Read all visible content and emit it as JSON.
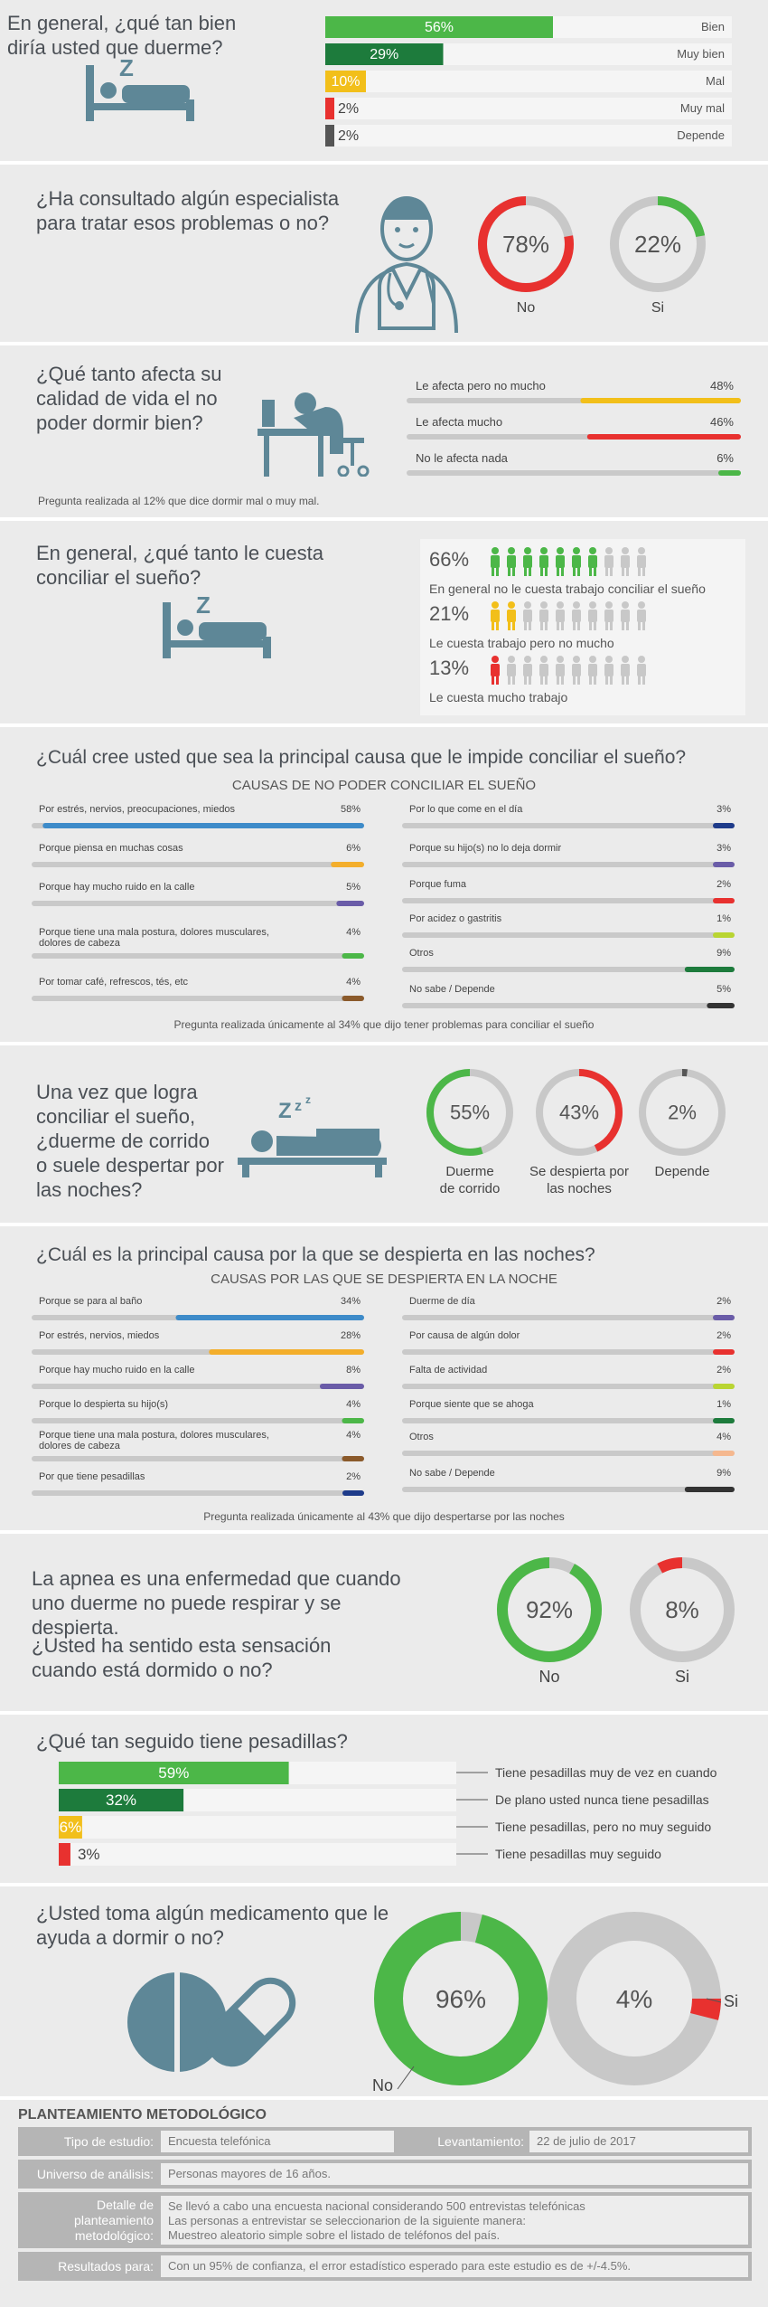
{
  "colors": {
    "green": "#4cb748",
    "dark_green": "#1d7b3c",
    "yellow": "#f2bf1a",
    "red": "#e8312f",
    "dark_gray": "#555555",
    "blue": "#3d8bc9",
    "orange": "#f3ae2b",
    "purple": "#6a5ca8",
    "brown": "#8b5a2b",
    "navy": "#1e3b8a",
    "light_green": "#b9d532",
    "bg": "#ebebeb",
    "icon": "#5e8797"
  },
  "s1": {
    "title": "En general, ¿qué tan bien diría usted que duerme?"
  },
  "s2": {
    "title": "¿Ha consultado algún especialista para tratar esos problemas o no?"
  },
  "s3": {
    "title": "¿Qué tanto afecta su calidad de vida el no poder dormir bien?",
    "note": "Pregunta realizada al 12% que dice dormir mal o muy mal."
  },
  "s4": {
    "title": "En general, ¿qué tanto le cuesta conciliar el sueño?"
  },
  "s5": {
    "title": "¿Cuál cree usted que sea la principal causa que le impide conciliar el sueño?",
    "subtitle": "CAUSAS DE NO PODER CONCILIAR EL SUEÑO",
    "note": "Pregunta realizada únicamente al 34% que dijo tener problemas para conciliar el sueño"
  },
  "s6": {
    "title": "Una vez que logra conciliar el sueño, ¿duerme de corrido o suele despertar por las noches?"
  },
  "s7": {
    "title": "¿Cuál es la principal causa por la que se despierta en las noches?",
    "subtitle": "CAUSAS POR LAS QUE SE DESPIERTA EN LA NOCHE",
    "note": "Pregunta realizada únicamente al 43% que dijo despertarse por las noches"
  },
  "s8": {
    "title1": "La apnea es una enfermedad que cuando uno duerme no puede respirar y se despierta.",
    "title2": "¿Usted ha sentido esta sensación cuando está dormido o no?"
  },
  "s9": {
    "title": "¿Qué tan seguido tiene pesadillas?"
  },
  "s10": {
    "title": "¿Usted toma algún medicamento que le ayuda a dormir o no?"
  },
  "meth": {
    "title": "PLANTEAMIENTO METODOLÓGICO",
    "tipo_label": "Tipo de estudio:",
    "tipo_value": "Encuesta telefónica",
    "lev_label": "Levantamiento:",
    "lev_value": "22 de julio de 2017",
    "univ_label": "Universo de análisis:",
    "univ_value": "Personas mayores de 16 años.",
    "detalle_label": "Detalle de planteamiento metodológico:",
    "detalle_value1": "Se llevó a cabo una encuesta nacional considerando 500 entrevistas telefónicas",
    "detalle_value2": "Las personas a entrevistar se seleccionarion de la siguiente manera:",
    "detalle_value3": "Muestreo aleatorio simple sobre el listado de teléfonos del país.",
    "res_label": "Resultados para:",
    "res_value": "Con un 95% de confianza, el error estadístico esperado para este estudio es de +/-4.5%."
  },
  "chart_data": [
    {
      "type": "bar",
      "id": "duerme",
      "categories": [
        "Bien",
        "Muy bien",
        "Mal",
        "Muy mal",
        "Depende"
      ],
      "values": [
        56,
        29,
        10,
        2,
        2
      ],
      "labels": [
        "56%",
        "29%",
        "10%",
        "2%",
        "2%"
      ],
      "colors": [
        "#4cb748",
        "#1d7b3c",
        "#f2bf1a",
        "#e8312f",
        "#555555"
      ],
      "ylim": [
        0,
        100
      ]
    },
    {
      "type": "pie",
      "id": "especialista",
      "categories": [
        "No",
        "Si"
      ],
      "values": [
        78,
        22
      ],
      "labels": [
        "78%",
        "22%"
      ],
      "colors": [
        "#e8312f",
        "#4cb748"
      ]
    },
    {
      "type": "bar",
      "id": "afecta",
      "categories": [
        "Le afecta pero no mucho",
        "Le afecta mucho",
        "No le afecta nada"
      ],
      "values": [
        48,
        46,
        6
      ],
      "labels": [
        "48%",
        "46%",
        "6%"
      ],
      "colors": [
        "#f2bf1a",
        "#e8312f",
        "#4cb748"
      ]
    },
    {
      "type": "bar",
      "id": "conciliar",
      "categories": [
        "En general no le cuesta trabajo conciliar el sueño",
        "Le cuesta trabajo pero no mucho",
        "Le cuesta mucho trabajo"
      ],
      "values": [
        66,
        21,
        13
      ],
      "labels": [
        "66%",
        "21%",
        "13%"
      ],
      "colors": [
        "#4cb748",
        "#f2bf1a",
        "#e8312f"
      ]
    },
    {
      "type": "bar",
      "id": "causas_conciliar_izq",
      "categories": [
        "Por estrés, nervios, preocupaciones, miedos",
        "Porque piensa en muchas cosas",
        "Porque hay mucho ruido en la calle",
        "Porque tiene una mala postura, dolores musculares, dolores de cabeza",
        "Por tomar café, refrescos, tés, etc"
      ],
      "values": [
        58,
        6,
        5,
        4,
        4
      ],
      "labels": [
        "58%",
        "6%",
        "5%",
        "4%",
        "4%"
      ],
      "colors": [
        "#3d8bc9",
        "#f3ae2b",
        "#6a5ca8",
        "#4cb748",
        "#8b5a2b"
      ]
    },
    {
      "type": "bar",
      "id": "causas_conciliar_der",
      "categories": [
        "Por lo que come en el día",
        "Porque su hijo(s) no lo deja dormir",
        "Porque fuma",
        "Por acidez o gastritis",
        "Otros",
        "No sabe / Depende"
      ],
      "values": [
        3,
        3,
        2,
        1,
        9,
        5
      ],
      "labels": [
        "3%",
        "3%",
        "2%",
        "1%",
        "9%",
        "5%"
      ],
      "colors": [
        "#1e3b8a",
        "#6a5ca8",
        "#e8312f",
        "#b9d532",
        "#1d7b3c",
        "#333333"
      ]
    },
    {
      "type": "pie",
      "id": "corrido",
      "categories": [
        "Duerme de corrido",
        "Se despierta por las noches",
        "Depende"
      ],
      "values": [
        55,
        43,
        2
      ],
      "labels": [
        "55%",
        "43%",
        "2%"
      ],
      "colors": [
        "#4cb748",
        "#e8312f",
        "#555555"
      ]
    },
    {
      "type": "bar",
      "id": "causas_despierta_izq",
      "categories": [
        "Porque se para al baño",
        "Por estrés, nervios, miedos",
        "Porque hay mucho ruido en la calle",
        "Porque lo despierta su hijo(s)",
        "Porque tiene una mala postura, dolores musculares, dolores de cabeza",
        "Por que tiene pesadillas"
      ],
      "values": [
        34,
        28,
        8,
        4,
        4,
        2
      ],
      "labels": [
        "34%",
        "28%",
        "8%",
        "4%",
        "4%",
        "2%"
      ],
      "colors": [
        "#3d8bc9",
        "#f3ae2b",
        "#6a5ca8",
        "#4cb748",
        "#8b5a2b",
        "#1e3b8a"
      ]
    },
    {
      "type": "bar",
      "id": "causas_despierta_der",
      "categories": [
        "Duerme de día",
        "Por causa de algún dolor",
        "Falta de actividad",
        "Porque siente que se ahoga",
        "Otros",
        "No sabe / Depende"
      ],
      "values": [
        2,
        2,
        2,
        1,
        4,
        9
      ],
      "labels": [
        "2%",
        "2%",
        "2%",
        "1%",
        "4%",
        "9%"
      ],
      "colors": [
        "#6a5ca8",
        "#e8312f",
        "#b9d532",
        "#1d7b3c",
        "#f5b88f",
        "#333333"
      ]
    },
    {
      "type": "pie",
      "id": "apnea",
      "categories": [
        "No",
        "Si"
      ],
      "values": [
        92,
        8
      ],
      "labels": [
        "92%",
        "8%"
      ],
      "colors": [
        "#4cb748",
        "#e8312f"
      ]
    },
    {
      "type": "bar",
      "id": "pesadillas",
      "categories": [
        "Tiene pesadillas muy de vez en cuando",
        "De plano usted nunca tiene pesadillas",
        "Tiene pesadillas, pero no muy seguido",
        "Tiene pesadillas muy seguido"
      ],
      "values": [
        59,
        32,
        6,
        3
      ],
      "labels": [
        "59%",
        "32%",
        "6%",
        "3%"
      ],
      "colors": [
        "#4cb748",
        "#1d7b3c",
        "#f2bf1a",
        "#e8312f"
      ]
    },
    {
      "type": "pie",
      "id": "medicamento",
      "categories": [
        "No",
        "Si"
      ],
      "values": [
        96,
        4
      ],
      "labels": [
        "96%",
        "4%"
      ],
      "colors": [
        "#4cb748",
        "#e8312f"
      ]
    }
  ]
}
